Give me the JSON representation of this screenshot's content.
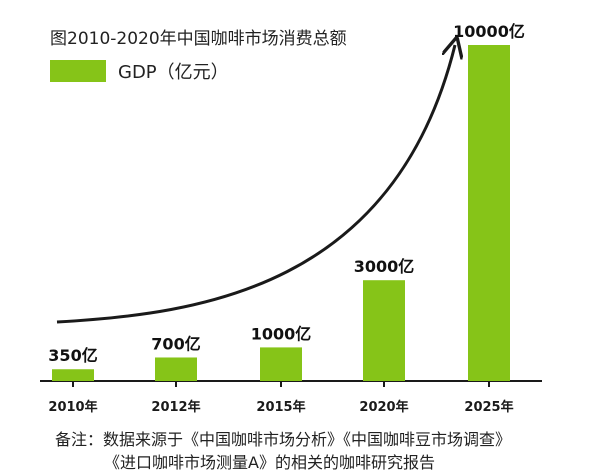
{
  "title": "图2010-2020年中国咖啡市场消费总额",
  "legend": {
    "label": "GDP（亿元）"
  },
  "colors": {
    "bar": "#86c418",
    "axis": "#1a1a1a",
    "curve": "#1a1a1a"
  },
  "notes": {
    "line1": "备注：数据来源于《中国咖啡市场分析》《中国咖啡豆市场调查》",
    "line2": "《进口咖啡市场测量A》的相关的咖啡研究报告"
  },
  "chart_data": {
    "type": "bar",
    "categories": [
      "2010年",
      "2012年",
      "2015年",
      "2020年",
      "2025年"
    ],
    "values": [
      350,
      700,
      1000,
      3000,
      10000
    ],
    "data_labels": [
      "350亿",
      "700亿",
      "1000亿",
      "3000亿",
      "10000亿"
    ],
    "series": [
      {
        "name": "GDP（亿元）",
        "values": [
          350,
          700,
          1000,
          3000,
          10000
        ]
      }
    ],
    "ylim": [
      0,
      10000
    ],
    "grid": false,
    "legend_position": "top-left",
    "annotations": [
      "exponential growth arrow curve above bars"
    ]
  }
}
